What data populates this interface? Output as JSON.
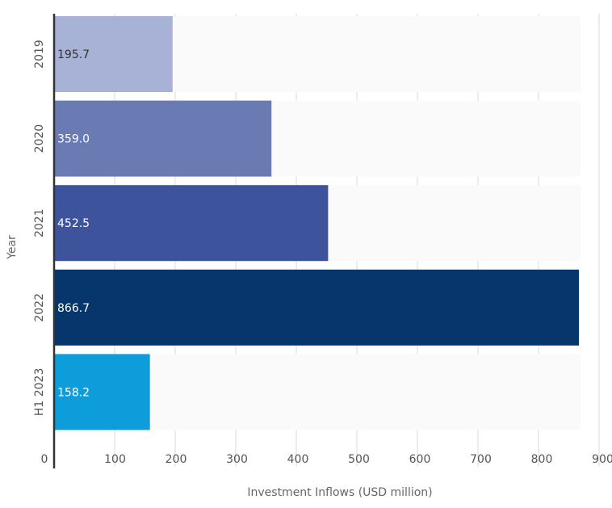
{
  "chart_data": {
    "type": "bar",
    "orientation": "horizontal",
    "title": "",
    "xlabel": "Investment Inflows (USD million)",
    "ylabel": "Year",
    "xlim": [
      0,
      900
    ],
    "x_ticks": [
      0,
      100,
      200,
      300,
      400,
      500,
      600,
      700,
      800,
      900
    ],
    "categories": [
      "2019",
      "2020",
      "2021",
      "2022",
      "H1 2023"
    ],
    "values": [
      195.7,
      359.0,
      452.5,
      866.7,
      158.2
    ],
    "value_labels": [
      "195.7",
      "359.0",
      "452.5",
      "866.7",
      "158.2"
    ],
    "grid": true,
    "legend": "none"
  },
  "colors": {
    "bars": [
      "#a8b1d6",
      "#6a7ab3",
      "#3d549c",
      "#06366b",
      "#0d9ddb"
    ],
    "bar_label_text": [
      "#333333",
      "#ffffff",
      "#ffffff",
      "#ffffff",
      "#ffffff"
    ],
    "gridline": "#d9d9d9",
    "axis_line": "#333333",
    "background": "#ffffff"
  }
}
